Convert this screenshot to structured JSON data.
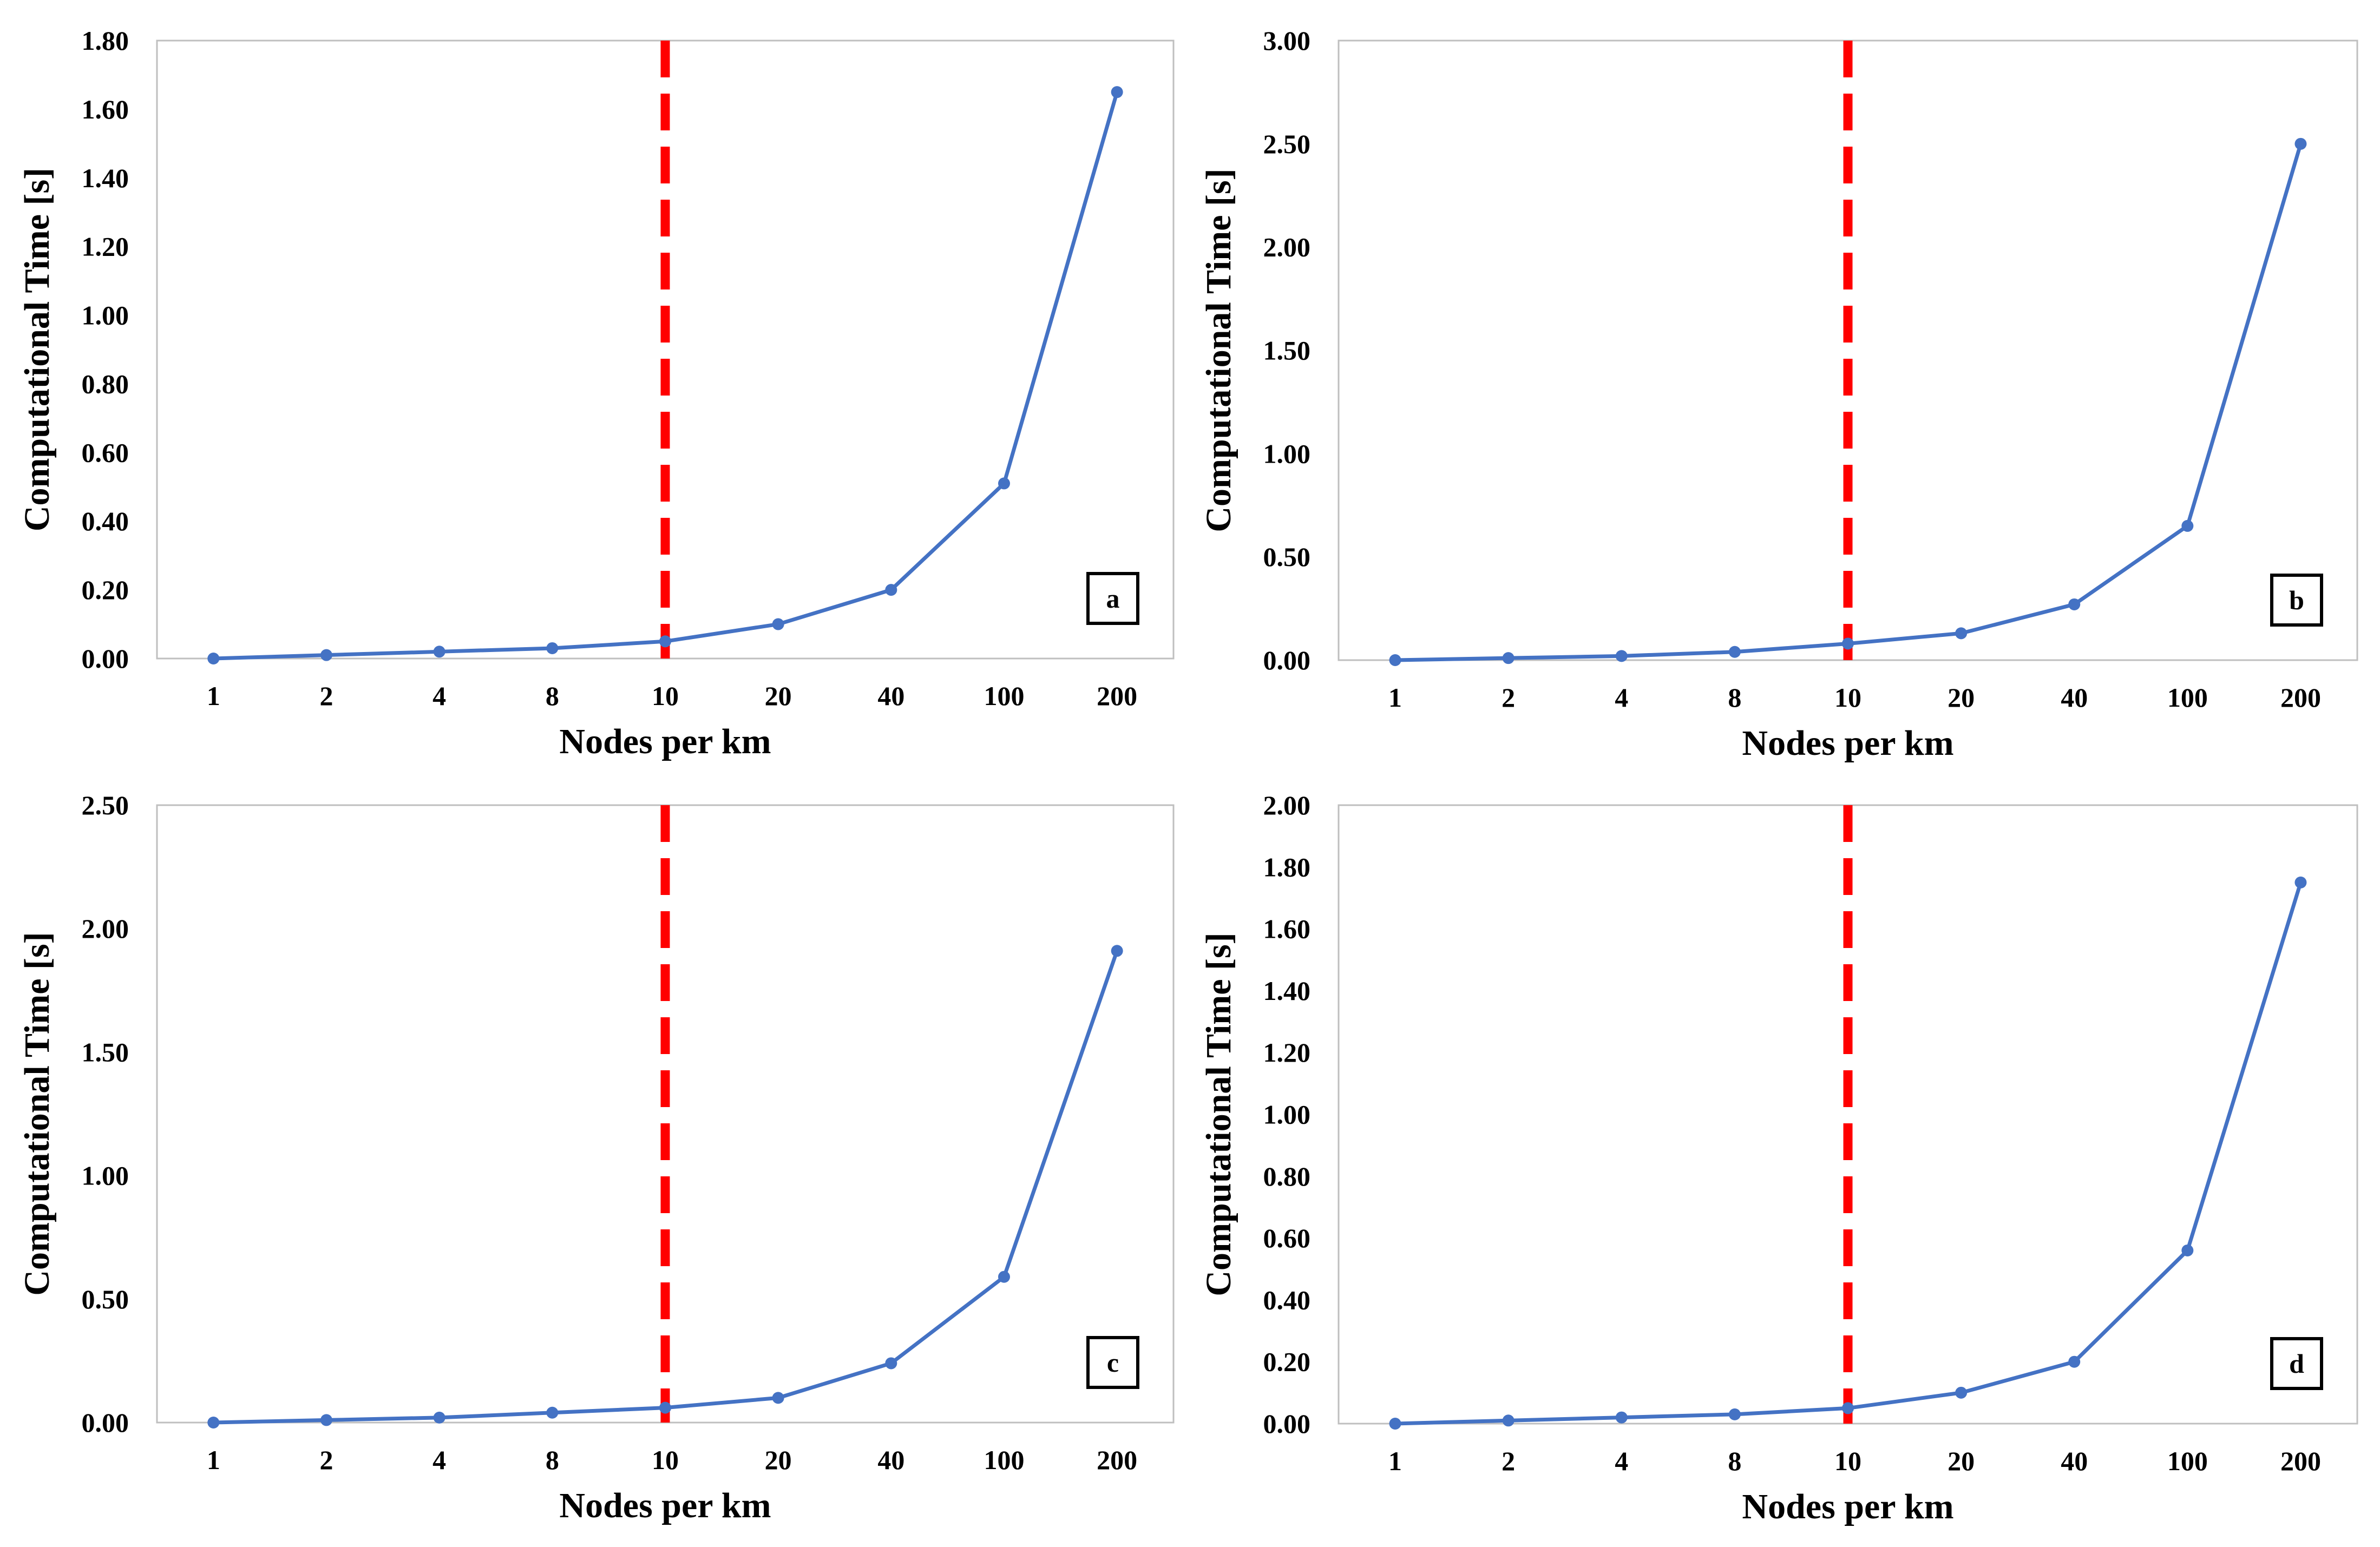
{
  "colors": {
    "series": "#4472C4",
    "threshold": "#FF0000",
    "frame": "#BFBFBF",
    "text": "#000000"
  },
  "chart_data": [
    {
      "type": "line",
      "panel": "a",
      "categories": [
        "1",
        "2",
        "4",
        "8",
        "10",
        "20",
        "40",
        "100",
        "200"
      ],
      "values": [
        0.0,
        0.01,
        0.02,
        0.03,
        0.05,
        0.1,
        0.2,
        0.51,
        1.65
      ],
      "xlabel": "Nodes per km",
      "ylabel": "Computational Time [s]",
      "ylim": [
        0,
        1.8
      ],
      "yticks": [
        "0.00",
        "0.20",
        "0.40",
        "0.60",
        "0.80",
        "1.00",
        "1.20",
        "1.40",
        "1.60",
        "1.80"
      ],
      "threshold_category": "10",
      "grid": false
    },
    {
      "type": "line",
      "panel": "b",
      "categories": [
        "1",
        "2",
        "4",
        "8",
        "10",
        "20",
        "40",
        "100",
        "200"
      ],
      "values": [
        0.0,
        0.01,
        0.02,
        0.04,
        0.08,
        0.13,
        0.27,
        0.65,
        2.5
      ],
      "xlabel": "Nodes per km",
      "ylabel": "Computational Time [s]",
      "ylim": [
        0,
        3.0
      ],
      "yticks": [
        "0.00",
        "0.50",
        "1.00",
        "1.50",
        "2.00",
        "2.50",
        "3.00"
      ],
      "threshold_category": "10",
      "grid": false
    },
    {
      "type": "line",
      "panel": "c",
      "categories": [
        "1",
        "2",
        "4",
        "8",
        "10",
        "20",
        "40",
        "100",
        "200"
      ],
      "values": [
        0.0,
        0.01,
        0.02,
        0.04,
        0.06,
        0.1,
        0.24,
        0.59,
        1.91
      ],
      "xlabel": "Nodes per km",
      "ylabel": "Computational Time [s]",
      "ylim": [
        0,
        2.5
      ],
      "yticks": [
        "0.00",
        "0.50",
        "1.00",
        "1.50",
        "2.00",
        "2.50"
      ],
      "threshold_category": "10",
      "grid": false
    },
    {
      "type": "line",
      "panel": "d",
      "categories": [
        "1",
        "2",
        "4",
        "8",
        "10",
        "20",
        "40",
        "100",
        "200"
      ],
      "values": [
        0.0,
        0.01,
        0.02,
        0.03,
        0.05,
        0.1,
        0.2,
        0.56,
        1.75
      ],
      "xlabel": "Nodes per km",
      "ylabel": "Computational Time [s]",
      "ylim": [
        0,
        2.0
      ],
      "yticks": [
        "0.00",
        "0.20",
        "0.40",
        "0.60",
        "0.80",
        "1.00",
        "1.20",
        "1.40",
        "1.60",
        "1.80",
        "2.00"
      ],
      "threshold_category": "10",
      "grid": false
    }
  ]
}
